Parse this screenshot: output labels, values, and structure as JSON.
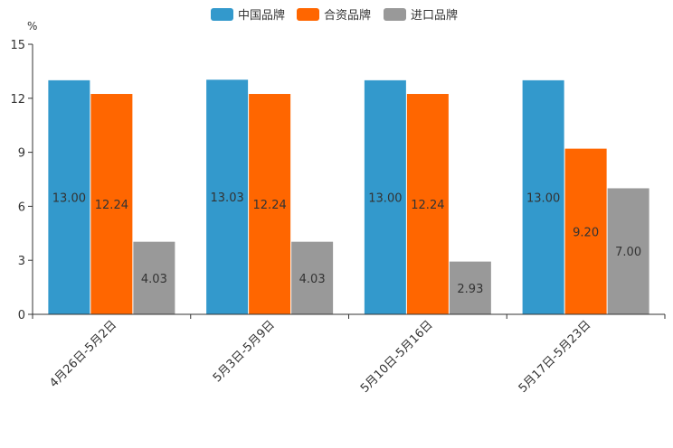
{
  "chart_data": {
    "type": "bar",
    "unit": "%",
    "categories": [
      "4月26日-5月2日",
      "5月3日-5月9日",
      "5月10日-5月16日",
      "5月17日-5月23日"
    ],
    "series": [
      {
        "name": "中国品牌",
        "color": "#3399cc",
        "values": [
          13.0,
          13.03,
          13.0,
          13.0
        ],
        "labels": [
          "13.00",
          "13.03",
          "13.00",
          "13.00"
        ]
      },
      {
        "name": "合资品牌",
        "color": "#ff6600",
        "values": [
          12.24,
          12.24,
          12.24,
          9.2
        ],
        "labels": [
          "12.24",
          "12.24",
          "12.24",
          "9.20"
        ]
      },
      {
        "name": "进口品牌",
        "color": "#999999",
        "values": [
          4.03,
          4.03,
          2.93,
          7.0
        ],
        "labels": [
          "4.03",
          "4.03",
          "2.93",
          "7.00"
        ]
      }
    ],
    "ylim": [
      0,
      15
    ],
    "yticks": [
      "0",
      "3",
      "6",
      "9",
      "12",
      "15"
    ],
    "legend_position": "top-center",
    "grid": false
  }
}
